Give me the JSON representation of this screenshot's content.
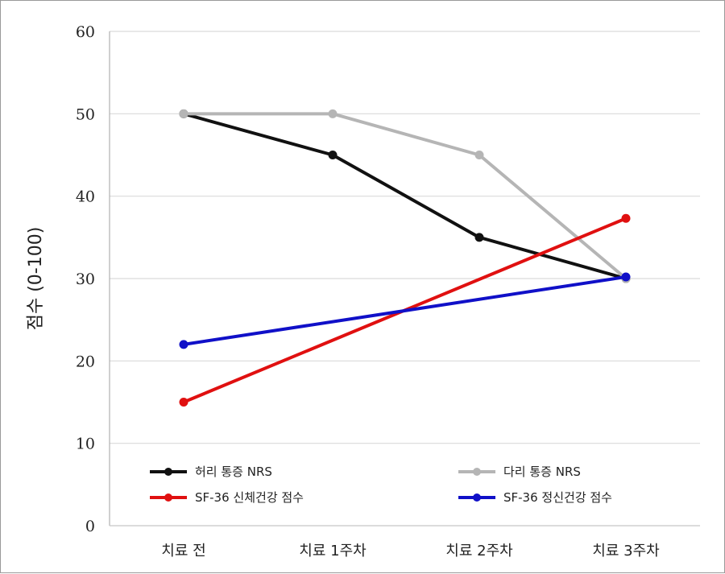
{
  "chart_data": {
    "type": "line",
    "title": "",
    "xlabel": "",
    "ylabel": "점수 (0-100)",
    "categories": [
      "치료 전",
      "치료 1주차",
      "치료 2주차",
      "치료 3주차"
    ],
    "yticks": [
      "0",
      "10",
      "20",
      "30",
      "40",
      "50",
      "60"
    ],
    "ylim": [
      0,
      60
    ],
    "grid": true,
    "legend_position": "bottom (inside plot, two columns)",
    "series": [
      {
        "name": "허리 통증 NRS",
        "color": "#111111",
        "marker": true,
        "points": [
          [
            0,
            50
          ],
          [
            1,
            45
          ],
          [
            2,
            35
          ],
          [
            3,
            30
          ]
        ]
      },
      {
        "name": "다리 통증 NRS",
        "color": "#b5b5b5",
        "marker": true,
        "points": [
          [
            0,
            50
          ],
          [
            1,
            50
          ],
          [
            2,
            45
          ],
          [
            3,
            30
          ]
        ]
      },
      {
        "name": "SF-36 신체건강 점수",
        "color": "#e01010",
        "marker": true,
        "points": [
          [
            0,
            15
          ],
          [
            3,
            37.3
          ]
        ]
      },
      {
        "name": "SF-36 정신건강 점수",
        "color": "#1010c8",
        "marker": true,
        "points": [
          [
            0,
            22
          ],
          [
            3,
            30.2
          ]
        ]
      }
    ]
  }
}
